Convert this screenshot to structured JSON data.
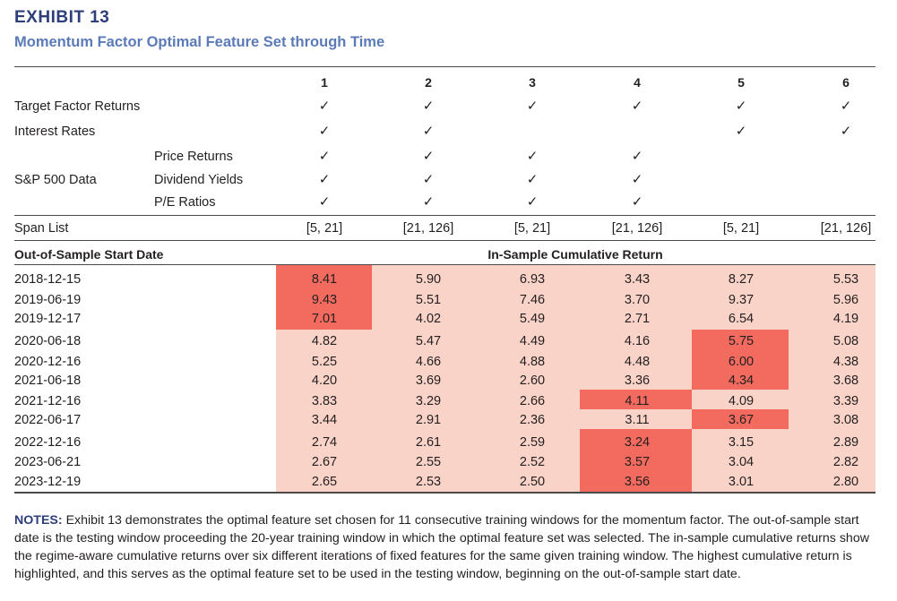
{
  "exhibit": {
    "label": "EXHIBIT 13",
    "title": "Momentum Factor Optimal Feature Set through Time"
  },
  "columns": [
    "1",
    "2",
    "3",
    "4",
    "5",
    "6"
  ],
  "check_symbol": "✓",
  "feature_rows": [
    {
      "label": "Target Factor Returns",
      "checks": [
        true,
        true,
        true,
        true,
        true,
        true
      ]
    },
    {
      "label": "Interest Rates",
      "checks": [
        true,
        true,
        false,
        false,
        true,
        true
      ]
    }
  ],
  "sp500": {
    "label": "S&P 500 Data",
    "rows": [
      {
        "label": "Price Returns",
        "checks": [
          true,
          true,
          true,
          true,
          false,
          false
        ]
      },
      {
        "label": "Dividend Yields",
        "checks": [
          true,
          true,
          true,
          true,
          false,
          false
        ]
      },
      {
        "label": "P/E Ratios",
        "checks": [
          true,
          true,
          true,
          true,
          false,
          false
        ]
      }
    ]
  },
  "span_list": {
    "label": "Span List",
    "values": [
      "[5, 21]",
      "[21, 126]",
      "[5, 21]",
      "[21, 126]",
      "[5, 21]",
      "[21, 126]"
    ]
  },
  "results_header": {
    "left": "Out-of-Sample Start Date",
    "center": "In-Sample Cumulative Return"
  },
  "colors": {
    "light": "#f9d3c7",
    "highlight": "#f26b5e",
    "title": "#5b7ab8",
    "label": "#2d3e7a"
  },
  "results": [
    {
      "date": "2018-12-15",
      "values": [
        "8.41",
        "5.90",
        "6.93",
        "3.43",
        "8.27",
        "5.53"
      ],
      "best": 0
    },
    {
      "date": "2019-06-19",
      "values": [
        "9.43",
        "5.51",
        "7.46",
        "3.70",
        "9.37",
        "5.96"
      ],
      "best": 0
    },
    {
      "date": "2019-12-17",
      "values": [
        "7.01",
        "4.02",
        "5.49",
        "2.71",
        "6.54",
        "4.19"
      ],
      "best": 0
    },
    {
      "date": "2020-06-18",
      "values": [
        "4.82",
        "5.47",
        "4.49",
        "4.16",
        "5.75",
        "5.08"
      ],
      "best": 4
    },
    {
      "date": "2020-12-16",
      "values": [
        "5.25",
        "4.66",
        "4.88",
        "4.48",
        "6.00",
        "4.38"
      ],
      "best": 4
    },
    {
      "date": "2021-06-18",
      "values": [
        "4.20",
        "3.69",
        "2.60",
        "3.36",
        "4.34",
        "3.68"
      ],
      "best": 4
    },
    {
      "date": "2021-12-16",
      "values": [
        "3.83",
        "3.29",
        "2.66",
        "4.11",
        "4.09",
        "3.39"
      ],
      "best": 3
    },
    {
      "date": "2022-06-17",
      "values": [
        "3.44",
        "2.91",
        "2.36",
        "3.11",
        "3.67",
        "3.08"
      ],
      "best": 4
    },
    {
      "date": "2022-12-16",
      "values": [
        "2.74",
        "2.61",
        "2.59",
        "3.24",
        "3.15",
        "2.89"
      ],
      "best": 3
    },
    {
      "date": "2023-06-21",
      "values": [
        "2.67",
        "2.55",
        "2.52",
        "3.57",
        "3.04",
        "2.82"
      ],
      "best": 3
    },
    {
      "date": "2023-12-19",
      "values": [
        "2.65",
        "2.53",
        "2.50",
        "3.56",
        "3.01",
        "2.80"
      ],
      "best": 3
    }
  ],
  "notes": {
    "label": "NOTES:",
    "text": "Exhibit 13 demonstrates the optimal feature set chosen for 11 consecutive training windows for the momentum factor. The out-of-sample start date is the testing window proceeding the 20-year training window in which the optimal feature set was selected. The in-sample cumulative returns show the regime-aware cumulative returns over six different iterations of fixed features for the same given training window. The highest cumulative return is highlighted, and this serves as the optimal feature set to be used in the testing window, beginning on the out-of-sample start date."
  }
}
